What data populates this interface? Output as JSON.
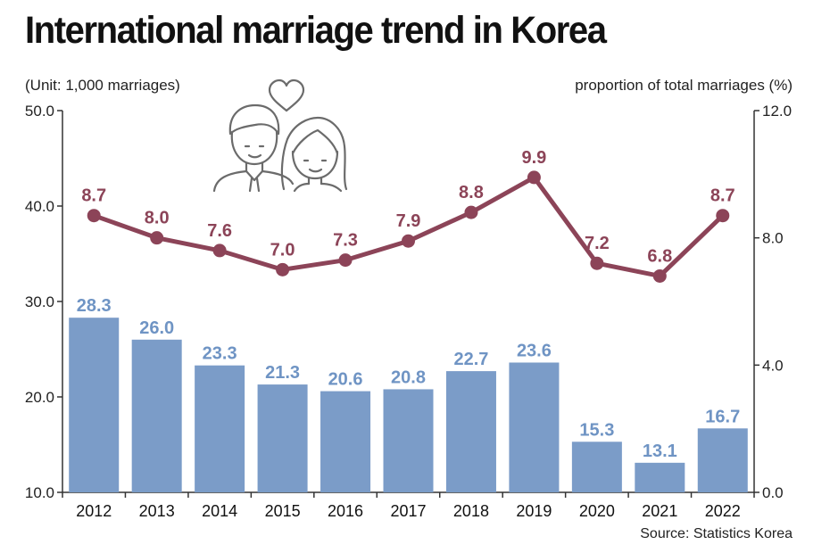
{
  "title": "International marriage trend in Korea",
  "unit_left": "(Unit: 1,000 marriages)",
  "unit_right": "proportion of total marriages (%)",
  "source": "Source: Statistics Korea",
  "chart_data": {
    "type": "bar",
    "categories": [
      "2012",
      "2013",
      "2014",
      "2015",
      "2016",
      "2017",
      "2018",
      "2019",
      "2020",
      "2021",
      "2022"
    ],
    "series": [
      {
        "type": "bar",
        "axis": "left",
        "color": "#7b9cc8",
        "label_color": "#6f94c4",
        "values": [
          28.3,
          26.0,
          23.3,
          21.3,
          20.6,
          20.8,
          22.7,
          23.6,
          15.3,
          13.1,
          16.7
        ]
      },
      {
        "type": "line",
        "axis": "right",
        "color": "#8c4458",
        "values": [
          8.7,
          8.0,
          7.6,
          7.0,
          7.3,
          7.9,
          8.8,
          9.9,
          7.2,
          6.8,
          8.7
        ]
      }
    ],
    "y_left": {
      "lim": [
        10.0,
        50.0
      ],
      "ticks": [
        "10.0",
        "20.0",
        "30.0",
        "40.0",
        "50.0"
      ]
    },
    "y_right": {
      "lim": [
        0.0,
        12.0
      ],
      "ticks": [
        "0.0",
        "4.0",
        "8.0",
        "12.0"
      ]
    },
    "grid": false
  },
  "illustration": {
    "icon": "couple-with-heart-icon"
  }
}
